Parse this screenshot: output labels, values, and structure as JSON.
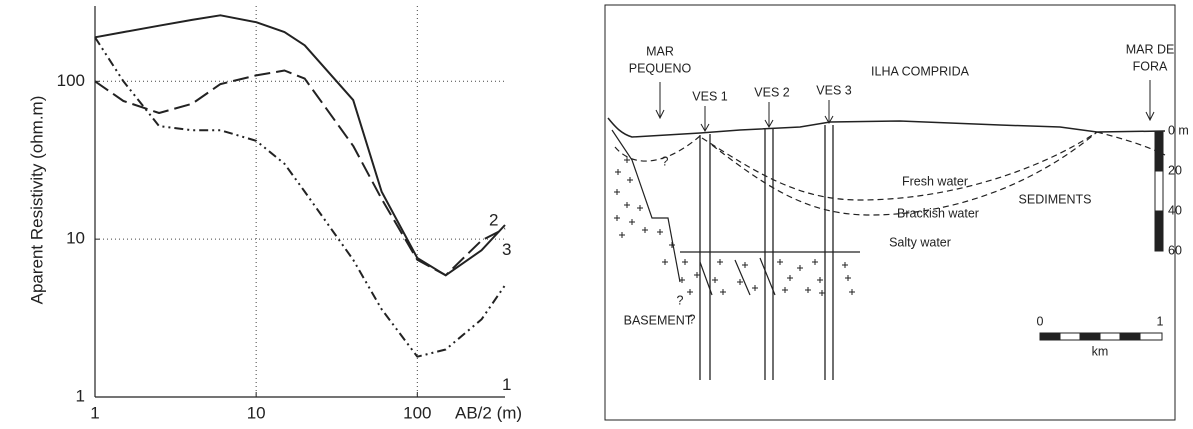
{
  "chart_data": {
    "type": "line",
    "x_label": "AB/2 (m)",
    "y_label": "Aparent Resistivity (ohm.m)",
    "x": [
      1,
      1.5,
      2.5,
      4,
      6,
      10,
      15,
      20,
      40,
      60,
      100,
      150,
      250,
      350
    ],
    "series": [
      {
        "name": "2",
        "color": "#222222",
        "line_style": "solid",
        "values": [
          190,
          205,
          225,
          245,
          262,
          237,
          205,
          169,
          76,
          20,
          7.6,
          5.9,
          8.5,
          12.3
        ]
      },
      {
        "name": "3",
        "color": "#222222",
        "line_style": "dashed",
        "values": [
          100,
          75,
          63,
          72,
          96,
          109,
          117,
          104,
          39,
          18,
          7.4,
          5.9,
          9.8,
          11.7
        ]
      },
      {
        "name": "1",
        "color": "#222222",
        "line_style": "dashdotdot",
        "values": [
          190,
          100,
          52,
          49,
          49,
          42,
          30,
          20,
          7.4,
          3.6,
          1.8,
          2.0,
          3.1,
          5.1
        ]
      }
    ],
    "x_scale": "log",
    "y_scale": "log",
    "xlim": [
      1,
      350
    ],
    "ylim": [
      1,
      300
    ],
    "xticks": [
      1,
      10,
      100
    ],
    "yticks": [
      1,
      10,
      100
    ],
    "grid": true
  },
  "diagram": {
    "locations": [
      [
        "MAR",
        "PEQUENO"
      ],
      [
        "ILHA COMPRIDA"
      ],
      [
        "MAR DE",
        "FORA"
      ]
    ],
    "soundings": [
      "VES 1",
      "VES 2",
      "VES 3"
    ],
    "zones": [
      "Fresh water",
      "Brackish water",
      "Salty water",
      "SEDIMENTS",
      "BASEMENT"
    ],
    "uncertain": [
      "?",
      "?",
      "?"
    ],
    "depth_scale": [
      "0 m",
      "20",
      "40",
      "60"
    ],
    "distance_scale": [
      "0",
      "1",
      "km"
    ]
  }
}
